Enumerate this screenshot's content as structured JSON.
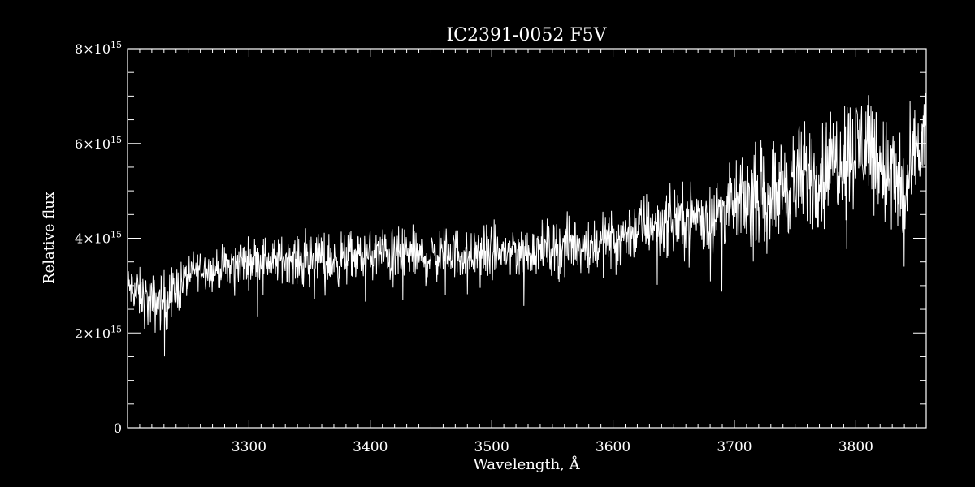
{
  "chart_data": {
    "type": "line",
    "title": "IC2391-0052   F5V",
    "xlabel": "Wavelength, Å",
    "ylabel": "Relative flux",
    "xlim": [
      3200,
      3858
    ],
    "ylim": [
      0,
      8000000000000000.0
    ],
    "x_ticks": [
      {
        "value": 3300,
        "label": "3300"
      },
      {
        "value": 3400,
        "label": "3400"
      },
      {
        "value": 3500,
        "label": "3500"
      },
      {
        "value": 3600,
        "label": "3600"
      },
      {
        "value": 3700,
        "label": "3700"
      },
      {
        "value": 3800,
        "label": "3800"
      }
    ],
    "y_ticks": [
      {
        "value": 0,
        "mantissa": "0",
        "exponent": ""
      },
      {
        "value": 2000000000000000.0,
        "mantissa": "2×10",
        "exponent": "15"
      },
      {
        "value": 4000000000000000.0,
        "mantissa": "4×10",
        "exponent": "15"
      },
      {
        "value": 6000000000000000.0,
        "mantissa": "6×10",
        "exponent": "15"
      },
      {
        "value": 8000000000000000.0,
        "mantissa": "8×10",
        "exponent": "15"
      }
    ],
    "x_minor_step": 10,
    "y_minor_step": 500000000000000.0,
    "grid": false,
    "line_color": "#ffffff",
    "background": "#000000",
    "series": [
      {
        "x": [
          3200,
          3210,
          3220,
          3230,
          3240,
          3250,
          3260,
          3270,
          3280,
          3290,
          3300,
          3310,
          3320,
          3330,
          3340,
          3350,
          3360,
          3370,
          3380,
          3390,
          3400,
          3410,
          3420,
          3430,
          3440,
          3450,
          3460,
          3470,
          3480,
          3490,
          3500,
          3510,
          3520,
          3530,
          3540,
          3550,
          3560,
          3570,
          3580,
          3590,
          3600,
          3610,
          3620,
          3630,
          3640,
          3650,
          3660,
          3670,
          3680,
          3690,
          3700,
          3710,
          3720,
          3730,
          3740,
          3750,
          3760,
          3770,
          3780,
          3790,
          3800,
          3810,
          3820,
          3830,
          3840,
          3850,
          3858
        ],
        "y_mean": [
          3000000000000000.0,
          2800000000000000.0,
          2600000000000000.0,
          2700000000000000.0,
          2900000000000000.0,
          3200000000000000.0,
          3400000000000000.0,
          3300000000000000.0,
          3400000000000000.0,
          3500000000000000.0,
          3500000000000000.0,
          3600000000000000.0,
          3500000000000000.0,
          3600000000000000.0,
          3500000000000000.0,
          3600000000000000.0,
          3600000000000000.0,
          3500000000000000.0,
          3600000000000000.0,
          3600000000000000.0,
          3600000000000000.0,
          3700000000000000.0,
          3600000000000000.0,
          3700000000000000.0,
          3600000000000000.0,
          3600000000000000.0,
          3700000000000000.0,
          3700000000000000.0,
          3600000000000000.0,
          3700000000000000.0,
          3700000000000000.0,
          3700000000000000.0,
          3800000000000000.0,
          3700000000000000.0,
          3800000000000000.0,
          3800000000000000.0,
          3800000000000000.0,
          3900000000000000.0,
          3800000000000000.0,
          3900000000000000.0,
          4000000000000000.0,
          4100000000000000.0,
          4200000000000000.0,
          4300000000000000.0,
          4300000000000000.0,
          4400000000000000.0,
          4400000000000000.0,
          4500000000000000.0,
          4400000000000000.0,
          4600000000000000.0,
          4700000000000000.0,
          4800000000000000.0,
          5000000000000000.0,
          5000000000000000.0,
          5100000000000000.0,
          5200000000000000.0,
          5300000000000000.0,
          5300000000000000.0,
          5600000000000000.0,
          5800000000000000.0,
          5900000000000000.0,
          6100000000000000.0,
          5600000000000000.0,
          5300000000000000.0,
          4900000000000000.0,
          5700000000000000.0,
          6300000000000000.0
        ],
        "y_spread": [
          600000000000000.0,
          800000000000000.0,
          900000000000000.0,
          900000000000000.0,
          800000000000000.0,
          700000000000000.0,
          600000000000000.0,
          600000000000000.0,
          600000000000000.0,
          700000000000000.0,
          700000000000000.0,
          700000000000000.0,
          700000000000000.0,
          700000000000000.0,
          700000000000000.0,
          800000000000000.0,
          800000000000000.0,
          800000000000000.0,
          800000000000000.0,
          800000000000000.0,
          800000000000000.0,
          800000000000000.0,
          800000000000000.0,
          800000000000000.0,
          800000000000000.0,
          800000000000000.0,
          800000000000000.0,
          800000000000000.0,
          800000000000000.0,
          800000000000000.0,
          800000000000000.0,
          800000000000000.0,
          800000000000000.0,
          800000000000000.0,
          800000000000000.0,
          800000000000000.0,
          900000000000000.0,
          900000000000000.0,
          900000000000000.0,
          900000000000000.0,
          900000000000000.0,
          900000000000000.0,
          1000000000000000.0,
          1000000000000000.0,
          1000000000000000.0,
          1000000000000000.0,
          1000000000000000.0,
          1000000000000000.0,
          1000000000000000.0,
          1100000000000000.0,
          1200000000000000.0,
          1300000000000000.0,
          1400000000000000.0,
          1500000000000000.0,
          1600000000000000.0,
          1600000000000000.0,
          1700000000000000.0,
          1700000000000000.0,
          1700000000000000.0,
          1800000000000000.0,
          1800000000000000.0,
          1800000000000000.0,
          1800000000000000.0,
          1800000000000000.0,
          1800000000000000.0,
          1600000000000000.0,
          1500000000000000.0
        ]
      }
    ]
  }
}
